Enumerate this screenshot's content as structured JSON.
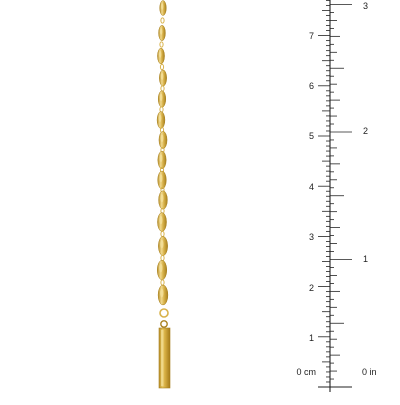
{
  "product": {
    "kind": "gold-mirror-link-chain-with-bar-drop",
    "metal_color": "#d8b24a",
    "metal_highlight": "#f3df9a",
    "metal_shadow": "#a8801e"
  },
  "ruler": {
    "line_color": "#222222",
    "cm_zero_label": "0 cm",
    "in_zero_label": "0 in",
    "cm_labels": [
      "1",
      "2",
      "3",
      "4",
      "5",
      "6",
      "7"
    ],
    "in_labels": [
      "1",
      "2",
      "3"
    ]
  }
}
